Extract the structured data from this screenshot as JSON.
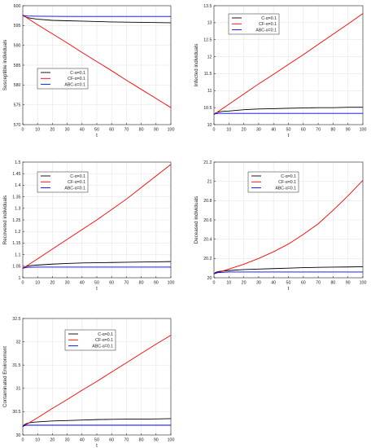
{
  "chart_data": [
    {
      "type": "line",
      "xlabel": "t",
      "ylabel": "Susceptible individuals",
      "xlim": [
        0,
        100
      ],
      "ylim": [
        570,
        600
      ],
      "xticks": [
        0,
        10,
        20,
        30,
        40,
        50,
        60,
        70,
        80,
        90,
        100
      ],
      "yticks": [
        570,
        575,
        580,
        585,
        590,
        595,
        600
      ],
      "legend": "left",
      "series": [
        {
          "name": "C-α=0.1",
          "color": "#000000",
          "x": [
            0,
            1,
            3,
            6,
            10,
            20,
            30,
            40,
            50,
            60,
            70,
            80,
            90,
            100
          ],
          "y": [
            597.6,
            597.3,
            597.0,
            596.8,
            596.6,
            596.3,
            596.2,
            596.1,
            596.0,
            595.9,
            595.85,
            595.8,
            595.75,
            595.7
          ]
        },
        {
          "name": "CF-α=0.1",
          "color": "#ff0000",
          "x": [
            0,
            10,
            20,
            30,
            40,
            50,
            60,
            70,
            80,
            90,
            100
          ],
          "y": [
            597.6,
            595.2,
            592.9,
            590.6,
            588.2,
            585.9,
            583.6,
            581.2,
            578.9,
            576.6,
            574.3
          ]
        },
        {
          "name": "ABC-α=0.1",
          "color": "#0000ff",
          "x": [
            0,
            1,
            3,
            10,
            30,
            60,
            100
          ],
          "y": [
            597.6,
            597.5,
            597.4,
            597.35,
            597.3,
            597.3,
            597.3
          ]
        }
      ]
    },
    {
      "type": "line",
      "xlabel": "t",
      "ylabel": "Infected individuals",
      "xlim": [
        0,
        100
      ],
      "ylim": [
        10,
        13.5
      ],
      "xticks": [
        0,
        10,
        20,
        30,
        40,
        50,
        60,
        70,
        80,
        90,
        100
      ],
      "yticks": [
        10,
        10.5,
        11,
        11.5,
        12,
        12.5,
        13,
        13.5
      ],
      "legend": "top-left",
      "series": [
        {
          "name": "C-α=0.1",
          "color": "#000000",
          "x": [
            0,
            1,
            3,
            6,
            10,
            20,
            30,
            40,
            50,
            60,
            70,
            80,
            90,
            100
          ],
          "y": [
            10.3,
            10.34,
            10.37,
            10.39,
            10.4,
            10.44,
            10.46,
            10.47,
            10.48,
            10.49,
            10.5,
            10.5,
            10.51,
            10.51
          ]
        },
        {
          "name": "CF-α=0.1",
          "color": "#ff0000",
          "x": [
            0,
            10,
            20,
            30,
            40,
            50,
            60,
            70,
            80,
            90,
            100
          ],
          "y": [
            10.3,
            10.6,
            10.9,
            11.2,
            11.48,
            11.77,
            12.06,
            12.36,
            12.66,
            12.96,
            13.27
          ]
        },
        {
          "name": "ABC-α=0.1",
          "color": "#0000ff",
          "x": [
            0,
            1,
            3,
            10,
            30,
            60,
            100
          ],
          "y": [
            10.3,
            10.32,
            10.33,
            10.33,
            10.33,
            10.33,
            10.33
          ]
        }
      ]
    },
    {
      "type": "line",
      "xlabel": "t",
      "ylabel": "Recovered individuals",
      "xlim": [
        0,
        100
      ],
      "ylim": [
        1,
        1.5
      ],
      "xticks": [
        0,
        10,
        20,
        30,
        40,
        50,
        60,
        70,
        80,
        90,
        100
      ],
      "yticks": [
        1,
        1.05,
        1.1,
        1.15,
        1.2,
        1.25,
        1.3,
        1.35,
        1.4,
        1.45,
        1.5
      ],
      "legend": "top-left",
      "series": [
        {
          "name": "C-α=0.1",
          "color": "#000000",
          "x": [
            0,
            1,
            3,
            6,
            10,
            20,
            30,
            40,
            50,
            60,
            70,
            80,
            90,
            100
          ],
          "y": [
            1.04,
            1.046,
            1.05,
            1.053,
            1.055,
            1.059,
            1.062,
            1.064,
            1.065,
            1.066,
            1.067,
            1.068,
            1.069,
            1.07
          ]
        },
        {
          "name": "CF-α=0.1",
          "color": "#ff0000",
          "x": [
            0,
            10,
            20,
            30,
            40,
            50,
            60,
            70,
            80,
            90,
            100
          ],
          "y": [
            1.04,
            1.082,
            1.124,
            1.166,
            1.208,
            1.25,
            1.295,
            1.34,
            1.39,
            1.44,
            1.49
          ]
        },
        {
          "name": "ABC-α=0.1",
          "color": "#0000ff",
          "x": [
            0,
            1,
            3,
            10,
            30,
            60,
            100
          ],
          "y": [
            1.04,
            1.043,
            1.045,
            1.046,
            1.046,
            1.046,
            1.046
          ]
        }
      ]
    },
    {
      "type": "line",
      "xlabel": "t",
      "ylabel": "Deceased individuals",
      "xlim": [
        0,
        100
      ],
      "ylim": [
        20,
        21.2
      ],
      "xticks": [
        0,
        10,
        20,
        30,
        40,
        50,
        60,
        70,
        80,
        90,
        100
      ],
      "yticks": [
        20,
        20.2,
        20.4,
        20.6,
        20.8,
        21,
        21.2
      ],
      "legend": "top-right",
      "series": [
        {
          "name": "C-α=0.1",
          "color": "#000000",
          "x": [
            0,
            1,
            3,
            6,
            10,
            20,
            30,
            40,
            50,
            60,
            70,
            80,
            90,
            100
          ],
          "y": [
            20.04,
            20.055,
            20.065,
            20.07,
            20.075,
            20.085,
            20.09,
            20.095,
            20.1,
            20.105,
            20.108,
            20.11,
            20.112,
            20.115
          ]
        },
        {
          "name": "CF-α=0.1",
          "color": "#ff0000",
          "x": [
            0,
            10,
            20,
            30,
            40,
            50,
            60,
            70,
            80,
            90,
            100
          ],
          "y": [
            20.04,
            20.09,
            20.14,
            20.2,
            20.27,
            20.35,
            20.45,
            20.56,
            20.7,
            20.85,
            21.01
          ]
        },
        {
          "name": "ABC-α=0.1",
          "color": "#0000ff",
          "x": [
            0,
            1,
            3,
            10,
            30,
            60,
            100
          ],
          "y": [
            20.04,
            20.05,
            20.055,
            20.06,
            20.06,
            20.06,
            20.06
          ]
        }
      ]
    },
    {
      "type": "line",
      "xlabel": "t",
      "ylabel": "Contaminated Environment",
      "xlim": [
        0,
        100
      ],
      "ylim": [
        30,
        32.5
      ],
      "xticks": [
        0,
        10,
        20,
        30,
        40,
        50,
        60,
        70,
        80,
        90,
        100
      ],
      "yticks": [
        30,
        30.5,
        31,
        31.5,
        32,
        32.5
      ],
      "legend": "top-left",
      "series": [
        {
          "name": "C-α=0.1",
          "color": "#000000",
          "x": [
            0,
            1,
            3,
            6,
            10,
            20,
            30,
            40,
            50,
            60,
            70,
            80,
            90,
            100
          ],
          "y": [
            30.18,
            30.22,
            30.25,
            30.27,
            30.28,
            30.3,
            30.31,
            30.32,
            30.33,
            30.335,
            30.34,
            30.34,
            30.345,
            30.35
          ]
        },
        {
          "name": "CF-α=0.1",
          "color": "#ff0000",
          "x": [
            0,
            10,
            20,
            30,
            40,
            50,
            60,
            70,
            80,
            90,
            100
          ],
          "y": [
            30.18,
            30.37,
            30.57,
            30.76,
            30.96,
            31.15,
            31.35,
            31.55,
            31.75,
            31.95,
            32.14
          ]
        },
        {
          "name": "ABC-α=0.1",
          "color": "#0000ff",
          "x": [
            0,
            1,
            3,
            10,
            30,
            60,
            100
          ],
          "y": [
            30.18,
            30.2,
            30.21,
            30.21,
            30.21,
            30.21,
            30.21
          ]
        }
      ]
    }
  ]
}
